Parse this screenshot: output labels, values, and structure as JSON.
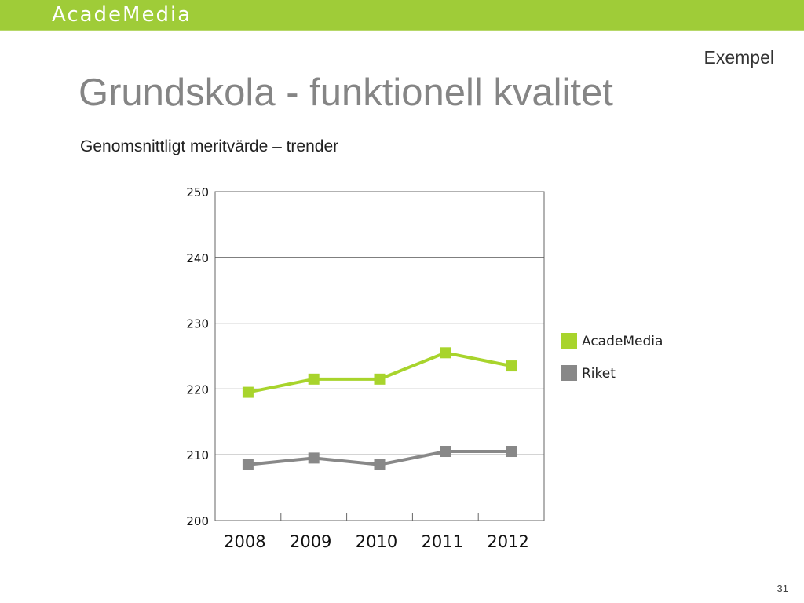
{
  "header": {
    "logo_text": "AcadeMedia"
  },
  "slide": {
    "tag": "Exempel",
    "title": "Grundskola - funktionell kvalitet",
    "subtitle": "Genomsnittligt meritvärde – trender",
    "page_number": "31"
  },
  "colors": {
    "bar": "#9fcc38",
    "academedia": "#a8d42c",
    "riket": "#888888",
    "title": "#858585"
  },
  "chart_data": {
    "type": "line",
    "categories": [
      "2008",
      "2009",
      "2010",
      "2011",
      "2012"
    ],
    "series": [
      {
        "name": "AcadeMedia",
        "values": [
          219.5,
          221.5,
          221.5,
          225.5,
          223.5
        ],
        "color": "#a8d42c"
      },
      {
        "name": "Riket",
        "values": [
          208.5,
          209.5,
          208.5,
          210.5,
          210.5
        ],
        "color": "#888888"
      }
    ],
    "ylim": [
      200,
      250
    ],
    "yticks": [
      200,
      210,
      220,
      230,
      240,
      250
    ],
    "grid": true,
    "legend": "right"
  }
}
